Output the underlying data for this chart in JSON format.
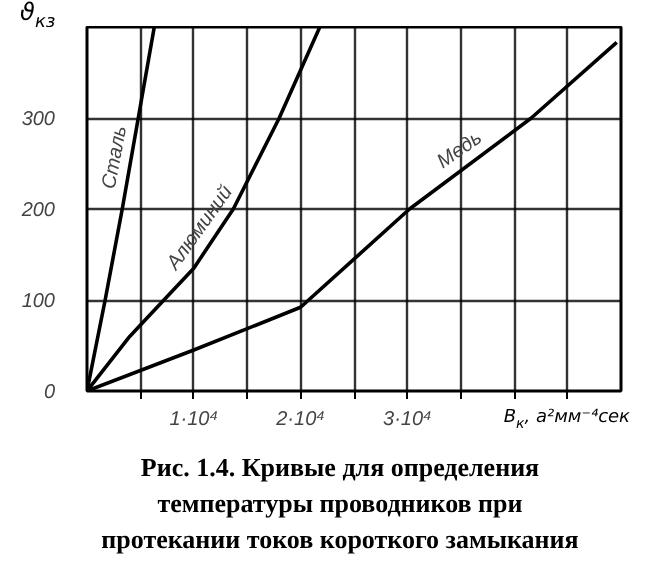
{
  "chart_data": {
    "type": "line",
    "title": "Рис. 1.4. Кривые для определения\nтемпературы проводников при\nпротекании токов короткого замыкания",
    "xlabel": "B$_{к}$, а²мм⁻⁴сек",
    "ylabel": "ϑ$_{кз}$",
    "series": [
      {
        "name": "Сталь",
        "color": "#000000",
        "x": [
          0,
          1700,
          3300,
          4800,
          6300
        ],
        "values": [
          0,
          100,
          200,
          300,
          400
        ]
      },
      {
        "name": "Алюминий",
        "color": "#000000",
        "x": [
          0,
          4000,
          7200,
          10000,
          13700,
          18000,
          21800
        ],
        "values": [
          0,
          60,
          100,
          135,
          200,
          300,
          400
        ]
      },
      {
        "name": "Медь",
        "color": "#000000",
        "x": [
          0,
          10000,
          20000,
          30200,
          41600,
          49600
        ],
        "values": [
          0,
          45,
          92,
          200,
          300,
          383
        ]
      }
    ],
    "xlim": [
      0,
      50000
    ],
    "ylim": [
      0,
      400
    ],
    "xticks": [
      {
        "value": 5000,
        "label": null
      },
      {
        "value": 10000,
        "label": "1·10⁴"
      },
      {
        "value": 15000,
        "label": null
      },
      {
        "value": 20000,
        "label": "2·10⁴"
      },
      {
        "value": 25000,
        "label": null
      },
      {
        "value": 30000,
        "label": "3·10⁴"
      },
      {
        "value": 35000,
        "label": null
      },
      {
        "value": 40000,
        "label": null
      },
      {
        "value": 45000,
        "label": null
      }
    ],
    "yticks": [
      0,
      100,
      200,
      300,
      {
        "value": 400,
        "label": null
      }
    ],
    "grid": true,
    "marker": "none",
    "line_style": "solid"
  }
}
